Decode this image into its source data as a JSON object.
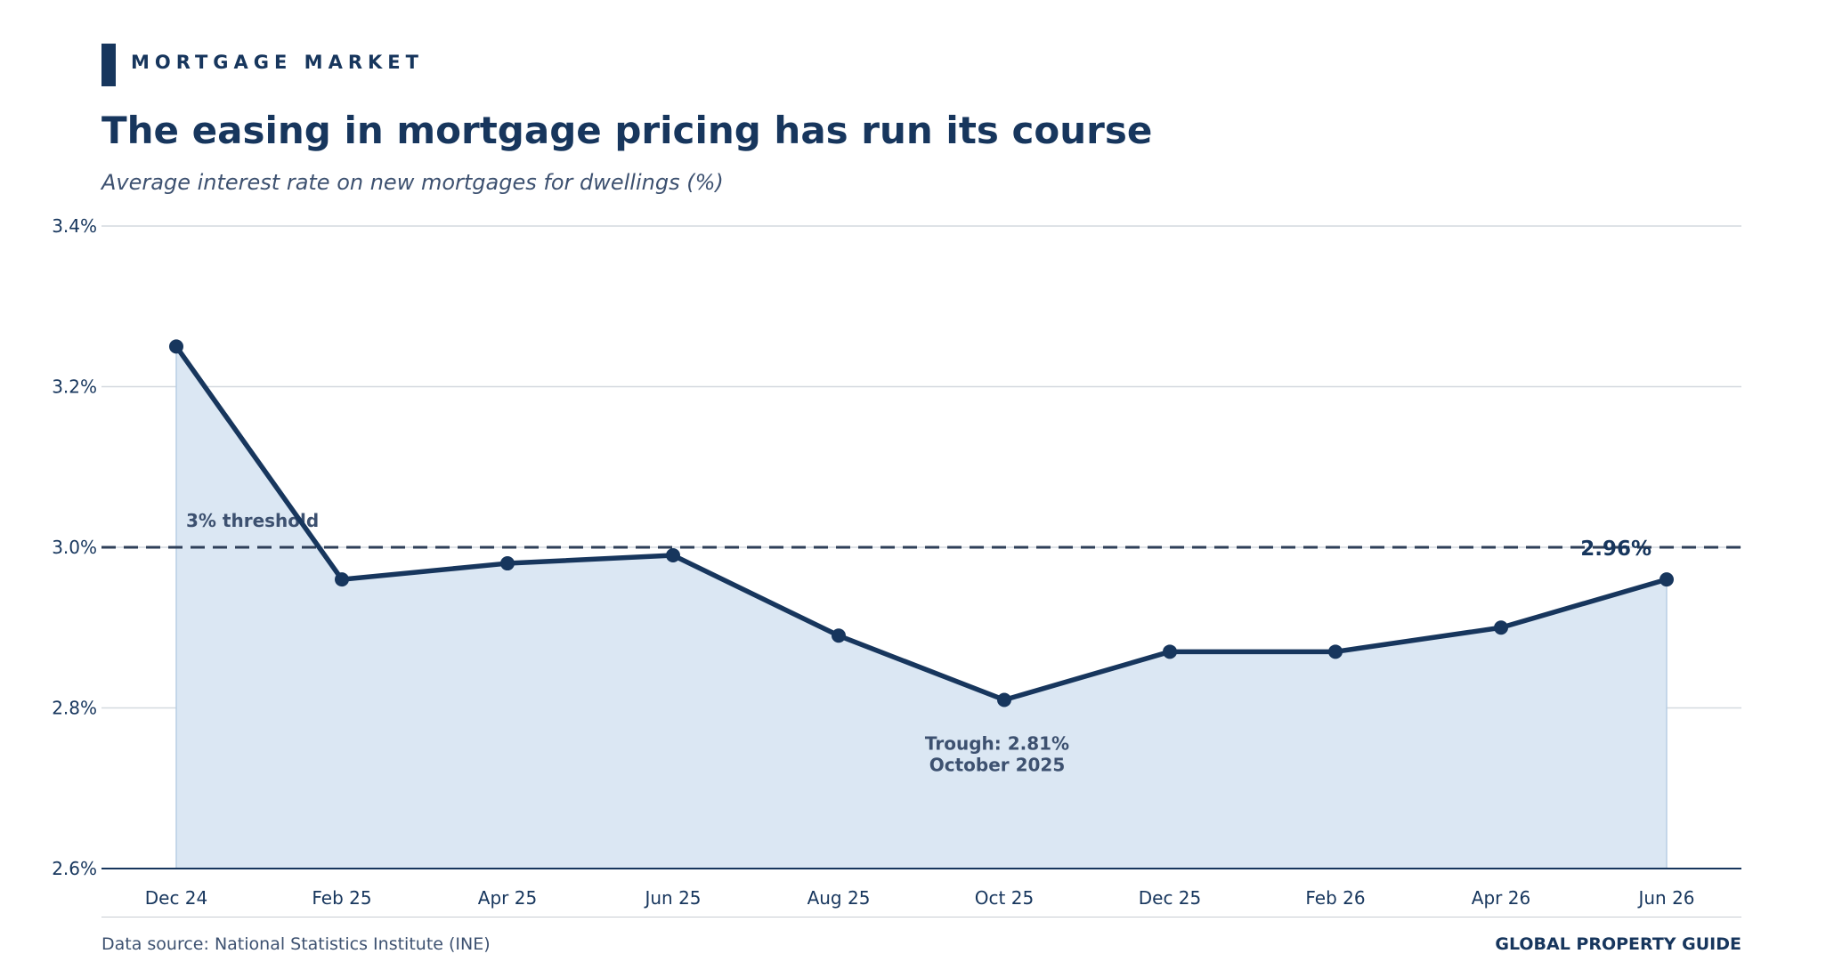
{
  "header": {
    "kicker": "MORTGAGE MARKET",
    "title": "The easing in mortgage pricing has run its course",
    "subtitle": "Average interest rate on new mortgages for dwellings (%)"
  },
  "footer": {
    "source": "Data source: National Statistics Institute (INE)",
    "brand": "GLOBAL PROPERTY GUIDE"
  },
  "colors": {
    "line": "#17365d",
    "fill": "#dbe7f3",
    "grid": "#d4d9df",
    "reference": "#2e3f58",
    "annotation": "#3d5170"
  },
  "chart_data": {
    "type": "line",
    "categories": [
      "Dec 24",
      "Feb 25",
      "Apr 25",
      "Jun 25",
      "Aug 25",
      "Oct 25",
      "Dec 25",
      "Feb 26",
      "Apr 26",
      "Jun 26"
    ],
    "series": [
      {
        "values": [
          3.25,
          2.96,
          2.98,
          2.99,
          2.89,
          2.81,
          2.87,
          2.87,
          2.9,
          2.96
        ]
      }
    ],
    "ylim": [
      2.6,
      3.4
    ],
    "yticks": [
      2.6,
      2.8,
      3.0,
      3.2,
      3.4
    ],
    "ytick_labels": [
      "2.6%",
      "2.8%",
      "3.0%",
      "3.2%",
      "3.4%"
    ],
    "grid": true,
    "area_fill": true,
    "reference_line": {
      "y": 3.0,
      "label": "3% threshold",
      "style": "dashed"
    },
    "annotations": [
      {
        "label_lines": [
          "Trough: 2.81%",
          "October 2025"
        ],
        "category": "Oct 25",
        "value": 2.81
      },
      {
        "label": "2.96%",
        "category": "Jun 26",
        "value": 2.96
      }
    ]
  }
}
